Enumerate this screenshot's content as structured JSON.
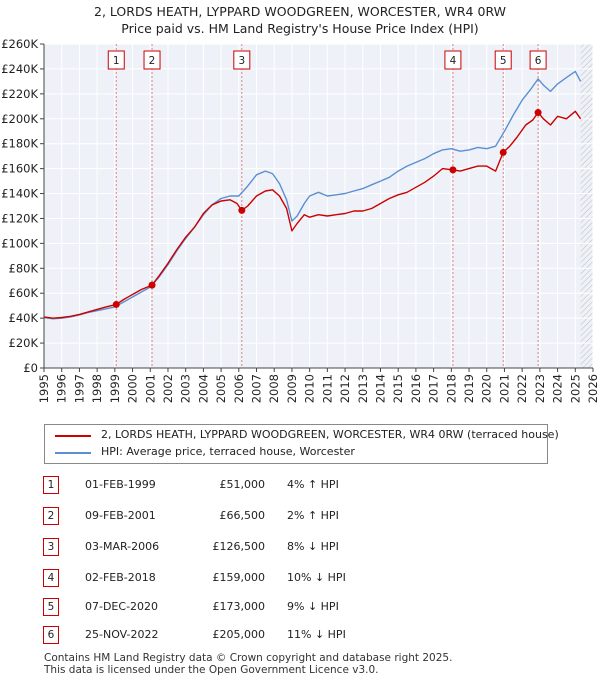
{
  "title_line1": "2, LORDS HEATH, LYPPARD WOODGREEN, WORCESTER, WR4 0RW",
  "title_line2": "Price paid vs. HM Land Registry's House Price Index (HPI)",
  "chart_data": {
    "type": "line",
    "title": "2, LORDS HEATH, LYPPARD WOODGREEN, WORCESTER, WR4 0RW — Price paid vs. HM Land Registry's House Price Index (HPI)",
    "xlim": [
      1995,
      2026
    ],
    "ylim": [
      0,
      260000
    ],
    "x_ticks": [
      1995,
      1996,
      1997,
      1998,
      1999,
      2000,
      2001,
      2002,
      2003,
      2004,
      2005,
      2006,
      2007,
      2008,
      2009,
      2010,
      2011,
      2012,
      2013,
      2014,
      2015,
      2016,
      2017,
      2018,
      2019,
      2020,
      2021,
      2022,
      2023,
      2024,
      2025,
      2026
    ],
    "y_ticks": [
      0,
      20000,
      40000,
      60000,
      80000,
      100000,
      120000,
      140000,
      160000,
      180000,
      200000,
      220000,
      240000,
      260000
    ],
    "y_tick_labels": [
      "£0",
      "£20K",
      "£40K",
      "£60K",
      "£80K",
      "£100K",
      "£120K",
      "£140K",
      "£160K",
      "£180K",
      "£200K",
      "£220K",
      "£240K",
      "£260K"
    ],
    "grid": true,
    "series": [
      {
        "name": "2, LORDS HEATH, LYPPARD WOODGREEN, WORCESTER, WR4 0RW (terraced house)",
        "color": "#cc0000",
        "x": [
          1995.0,
          1995.5,
          1996.0,
          1996.5,
          1997.0,
          1997.5,
          1998.0,
          1998.5,
          1999.08,
          1999.5,
          2000.0,
          2000.5,
          2001.1,
          2001.5,
          2002.0,
          2002.5,
          2003.0,
          2003.5,
          2004.0,
          2004.5,
          2005.0,
          2005.5,
          2005.9,
          2006.17,
          2006.5,
          2007.0,
          2007.5,
          2007.9,
          2008.3,
          2008.7,
          2009.0,
          2009.3,
          2009.7,
          2010.0,
          2010.5,
          2011.0,
          2011.5,
          2012.0,
          2012.5,
          2013.0,
          2013.5,
          2014.0,
          2014.5,
          2015.0,
          2015.5,
          2016.0,
          2016.5,
          2017.0,
          2017.5,
          2018.09,
          2018.5,
          2019.0,
          2019.5,
          2020.0,
          2020.5,
          2020.93,
          2021.3,
          2021.7,
          2022.2,
          2022.6,
          2022.9,
          2023.2,
          2023.6,
          2024.0,
          2024.5,
          2025.0,
          2025.3
        ],
        "y": [
          41000,
          40000,
          40500,
          41500,
          43000,
          45000,
          47000,
          49000,
          51000,
          55000,
          59000,
          63000,
          66500,
          74000,
          84000,
          95000,
          105000,
          113000,
          124000,
          131000,
          134000,
          135000,
          132000,
          126500,
          130000,
          138000,
          142000,
          143000,
          138000,
          128000,
          110000,
          116000,
          123000,
          121000,
          123000,
          122000,
          123000,
          124000,
          126000,
          126000,
          128000,
          132000,
          136000,
          139000,
          141000,
          145000,
          149000,
          154000,
          160000,
          159000,
          158000,
          160000,
          162000,
          162000,
          158000,
          173000,
          178000,
          185000,
          195000,
          199000,
          205000,
          200000,
          195000,
          202000,
          200000,
          206000,
          200000
        ]
      },
      {
        "name": "HPI: Average price, terraced house, Worcester",
        "color": "#5b8fd1",
        "x": [
          1995.0,
          1995.5,
          1996.0,
          1996.5,
          1997.0,
          1997.5,
          1998.0,
          1998.5,
          1999.0,
          1999.5,
          2000.0,
          2000.5,
          2001.0,
          2001.5,
          2002.0,
          2002.5,
          2003.0,
          2003.5,
          2004.0,
          2004.5,
          2005.0,
          2005.5,
          2006.0,
          2006.5,
          2007.0,
          2007.5,
          2007.9,
          2008.3,
          2008.7,
          2009.0,
          2009.3,
          2009.7,
          2010.0,
          2010.5,
          2011.0,
          2011.5,
          2012.0,
          2012.5,
          2013.0,
          2013.5,
          2014.0,
          2014.5,
          2015.0,
          2015.5,
          2016.0,
          2016.5,
          2017.0,
          2017.5,
          2018.0,
          2018.5,
          2019.0,
          2019.5,
          2020.0,
          2020.5,
          2021.0,
          2021.5,
          2022.0,
          2022.5,
          2022.9,
          2023.2,
          2023.6,
          2024.0,
          2024.5,
          2025.0,
          2025.3
        ],
        "y": [
          40500,
          39500,
          40000,
          41000,
          42500,
          44500,
          46000,
          47500,
          49000,
          53000,
          57000,
          61000,
          65000,
          73000,
          83000,
          94000,
          104000,
          113000,
          123000,
          131000,
          136000,
          138000,
          138000,
          146000,
          155000,
          158000,
          156000,
          148000,
          135000,
          118000,
          122000,
          132000,
          138000,
          141000,
          138000,
          139000,
          140000,
          142000,
          144000,
          147000,
          150000,
          153000,
          158000,
          162000,
          165000,
          168000,
          172000,
          175000,
          176000,
          174000,
          175000,
          177000,
          176000,
          178000,
          190000,
          203000,
          215000,
          224000,
          232000,
          227000,
          222000,
          228000,
          233000,
          238000,
          230000
        ]
      }
    ],
    "sales": [
      {
        "label": "1",
        "x": 1999.08,
        "y": 51000
      },
      {
        "label": "2",
        "x": 2001.1,
        "y": 66500
      },
      {
        "label": "3",
        "x": 2006.17,
        "y": 126500
      },
      {
        "label": "4",
        "x": 2018.09,
        "y": 159000
      },
      {
        "label": "5",
        "x": 2020.93,
        "y": 173000
      },
      {
        "label": "6",
        "x": 2022.9,
        "y": 205000
      }
    ],
    "hatch_after_x": 2025.3
  },
  "legend": {
    "property_label": "2, LORDS HEATH, LYPPARD WOODGREEN, WORCESTER, WR4 0RW (terraced house)",
    "hpi_label": "HPI: Average price, terraced house, Worcester",
    "property_color": "#cc0000",
    "hpi_color": "#5b8fd1"
  },
  "transactions": [
    {
      "num": "1",
      "date": "01-FEB-1999",
      "price": "£51,000",
      "hpi": "4% ↑ HPI"
    },
    {
      "num": "2",
      "date": "09-FEB-2001",
      "price": "£66,500",
      "hpi": "2% ↑ HPI"
    },
    {
      "num": "3",
      "date": "03-MAR-2006",
      "price": "£126,500",
      "hpi": "8% ↓ HPI"
    },
    {
      "num": "4",
      "date": "02-FEB-2018",
      "price": "£159,000",
      "hpi": "10% ↓ HPI"
    },
    {
      "num": "5",
      "date": "07-DEC-2020",
      "price": "£173,000",
      "hpi": "9% ↓ HPI"
    },
    {
      "num": "6",
      "date": "25-NOV-2022",
      "price": "£205,000",
      "hpi": "11% ↓ HPI"
    }
  ],
  "footer": {
    "line1": "Contains HM Land Registry data © Crown copyright and database right 2025.",
    "line2": "This data is licensed under the Open Government Licence v3.0."
  }
}
